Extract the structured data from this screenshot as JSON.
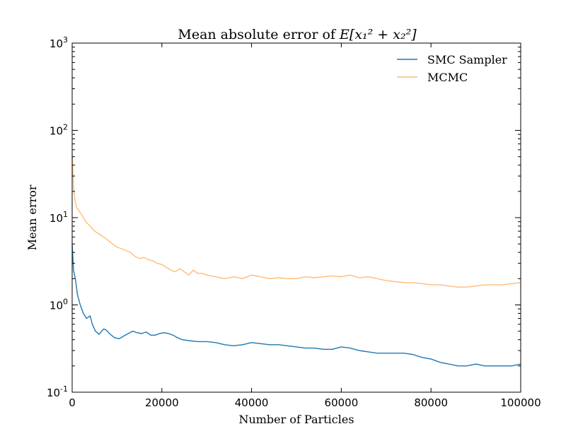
{
  "chart_data": {
    "type": "line",
    "title_text": "Mean absolute error of",
    "title_math": "E[x₁² + x₂²]",
    "xlabel": "Number of Particles",
    "ylabel": "Mean error",
    "xlim": [
      0,
      100000
    ],
    "ylim": [
      0.1,
      1000
    ],
    "yscale": "log",
    "grid": false,
    "legend_position": "top-right",
    "x_ticks": [
      0,
      20000,
      40000,
      60000,
      80000,
      100000
    ],
    "x_tick_labels": [
      "0",
      "20000",
      "40000",
      "60000",
      "80000",
      "100000"
    ],
    "y_ticks": [
      {
        "value": 0.1,
        "base": "10",
        "exp": "-1"
      },
      {
        "value": 1,
        "base": "10",
        "exp": "0"
      },
      {
        "value": 10,
        "base": "10",
        "exp": "1"
      },
      {
        "value": 100,
        "base": "10",
        "exp": "2"
      },
      {
        "value": 1000,
        "base": "10",
        "exp": "3"
      }
    ],
    "series": [
      {
        "name": "SMC Sampler",
        "color": "#1f77b4",
        "x": [
          0,
          300,
          700,
          1200,
          1800,
          2500,
          3200,
          4000,
          4500,
          5200,
          6000,
          7000,
          7500,
          8500,
          9500,
          10500,
          11500,
          12500,
          13500,
          14500,
          15500,
          16500,
          17500,
          18500,
          19500,
          20500,
          21500,
          22500,
          23500,
          24500,
          26000,
          28000,
          30000,
          32000,
          34000,
          36000,
          38000,
          40000,
          42000,
          44000,
          46000,
          48000,
          50000,
          52000,
          54000,
          56000,
          58000,
          60000,
          62000,
          64000,
          66000,
          68000,
          70000,
          72000,
          74000,
          76000,
          78000,
          80000,
          82000,
          84000,
          86000,
          88000,
          90000,
          92000,
          94000,
          96000,
          98000,
          100000
        ],
        "values": [
          5.0,
          2.5,
          2.0,
          1.3,
          1.0,
          0.8,
          0.7,
          0.75,
          0.6,
          0.5,
          0.46,
          0.53,
          0.52,
          0.46,
          0.42,
          0.41,
          0.44,
          0.47,
          0.5,
          0.48,
          0.47,
          0.49,
          0.45,
          0.45,
          0.47,
          0.48,
          0.47,
          0.45,
          0.42,
          0.4,
          0.39,
          0.38,
          0.38,
          0.37,
          0.35,
          0.34,
          0.35,
          0.37,
          0.36,
          0.35,
          0.35,
          0.34,
          0.33,
          0.32,
          0.32,
          0.31,
          0.31,
          0.33,
          0.32,
          0.3,
          0.29,
          0.28,
          0.28,
          0.28,
          0.28,
          0.27,
          0.25,
          0.24,
          0.22,
          0.21,
          0.2,
          0.2,
          0.21,
          0.2,
          0.2,
          0.2,
          0.2,
          0.21
        ]
      },
      {
        "name": "MCMC",
        "color": "#ffbb78",
        "x": [
          0,
          200,
          400,
          700,
          1000,
          1500,
          2000,
          2500,
          3000,
          4000,
          5000,
          6000,
          7000,
          8000,
          9000,
          10000,
          11000,
          12000,
          13000,
          14000,
          15000,
          16000,
          17000,
          18000,
          19000,
          20000,
          21000,
          22000,
          23000,
          24000,
          25000,
          26000,
          27000,
          28000,
          29000,
          30000,
          32000,
          34000,
          36000,
          38000,
          40000,
          42000,
          44000,
          46000,
          48000,
          50000,
          52000,
          54000,
          56000,
          58000,
          60000,
          62000,
          64000,
          66000,
          68000,
          70000,
          72000,
          74000,
          76000,
          78000,
          80000,
          82000,
          84000,
          86000,
          88000,
          90000,
          92000,
          94000,
          96000,
          98000,
          100000
        ],
        "values": [
          55,
          30,
          20,
          15,
          13,
          12,
          11,
          10,
          9,
          8,
          7,
          6.5,
          6,
          5.5,
          5,
          4.6,
          4.4,
          4.2,
          4.0,
          3.6,
          3.4,
          3.5,
          3.3,
          3.2,
          3.0,
          2.9,
          2.7,
          2.5,
          2.4,
          2.6,
          2.4,
          2.2,
          2.5,
          2.3,
          2.3,
          2.2,
          2.1,
          2.0,
          2.1,
          2.0,
          2.2,
          2.1,
          2.0,
          2.05,
          2.0,
          2.0,
          2.1,
          2.05,
          2.1,
          2.15,
          2.1,
          2.2,
          2.05,
          2.1,
          2.0,
          1.9,
          1.85,
          1.8,
          1.8,
          1.75,
          1.7,
          1.7,
          1.65,
          1.6,
          1.6,
          1.65,
          1.7,
          1.7,
          1.7,
          1.75,
          1.8
        ]
      }
    ]
  }
}
